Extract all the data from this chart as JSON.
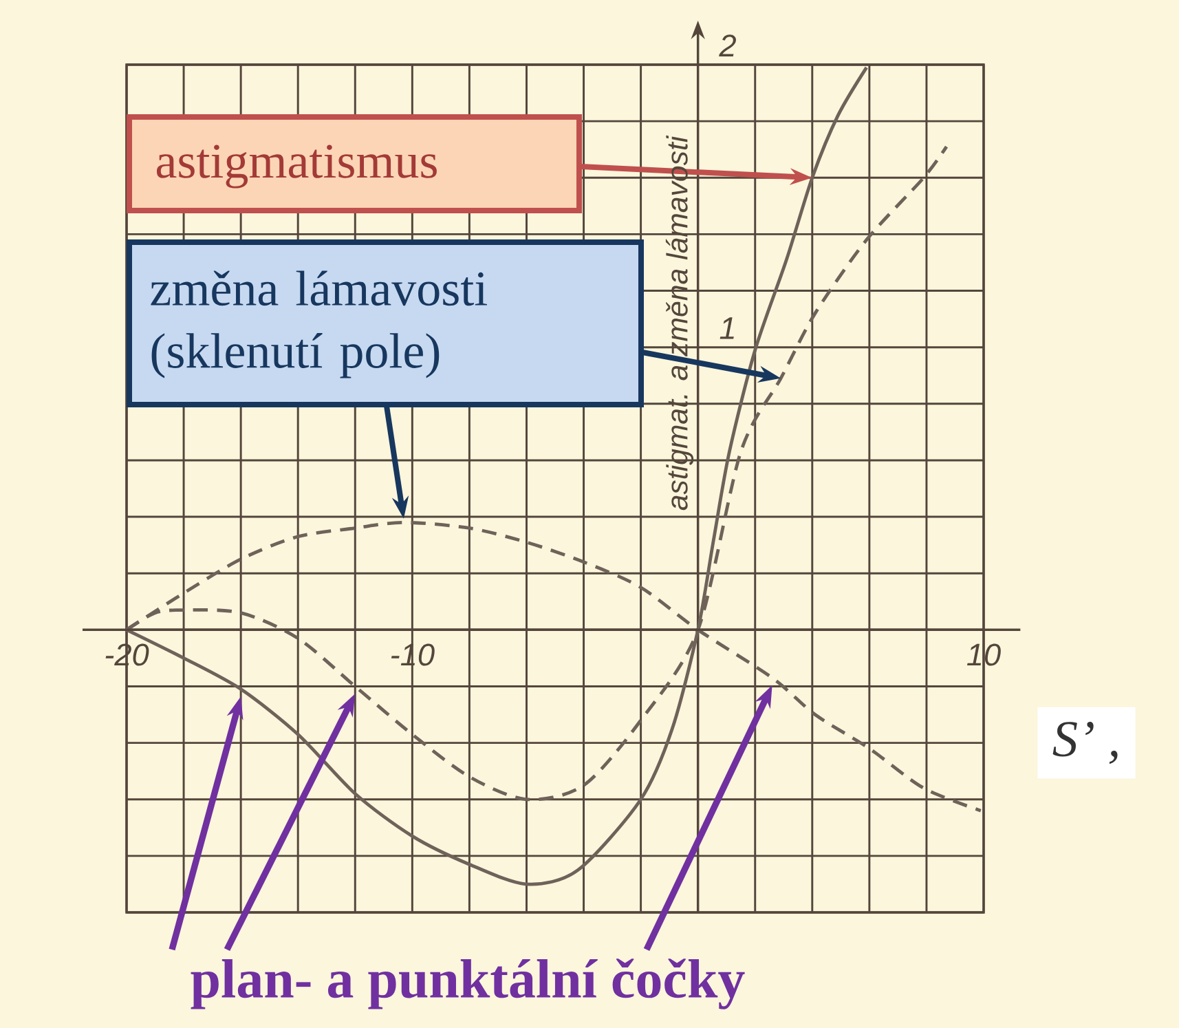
{
  "chart_data": {
    "type": "line",
    "xlabel": "S’ ,",
    "ylabel": "astigmat. a změna lámavosti",
    "annotations": [
      "astigmatismus",
      "změna lámavosti (sklenutí pole)",
      "plan- a punktální čočky"
    ],
    "xlim": [
      -20,
      10
    ],
    "ylim": [
      -1,
      2
    ],
    "xticks": [
      -20,
      {
        "value": -18,
        "label": null
      },
      {
        "value": -16,
        "label": null
      },
      {
        "value": -14,
        "label": null
      },
      {
        "value": -12,
        "label": null
      },
      -10,
      {
        "value": -8,
        "label": null
      },
      {
        "value": -6,
        "label": null
      },
      {
        "value": -4,
        "label": null
      },
      {
        "value": -2,
        "label": null
      },
      {
        "value": 0,
        "label": null
      },
      {
        "value": 2,
        "label": null
      },
      {
        "value": 4,
        "label": null
      },
      {
        "value": 6,
        "label": null
      },
      {
        "value": 8,
        "label": null
      },
      10
    ],
    "yticks": [
      {
        "value": -1,
        "label": null
      },
      {
        "value": -0.8,
        "label": null
      },
      {
        "value": -0.6,
        "label": null
      },
      {
        "value": -0.4,
        "label": null
      },
      {
        "value": -0.2,
        "label": null
      },
      {
        "value": 0,
        "label": null
      },
      {
        "value": 0.2,
        "label": null
      },
      {
        "value": 0.4,
        "label": null
      },
      {
        "value": 0.6,
        "label": null
      },
      {
        "value": 0.8,
        "label": null
      },
      1,
      {
        "value": 1.2,
        "label": null
      },
      {
        "value": 1.4,
        "label": null
      },
      {
        "value": 1.6,
        "label": null
      },
      {
        "value": 1.8,
        "label": null
      },
      2
    ],
    "grid": true,
    "marker": "none",
    "series": [
      {
        "color": "#6e6259",
        "line_style": "solid",
        "x": [
          -20,
          -18,
          -16,
          -14,
          -12,
          -10,
          -8,
          -6,
          -4.2,
          -2,
          -0.9,
          0,
          0.55,
          1.1,
          2,
          3.1,
          4,
          4.9,
          5.9
        ],
        "values": [
          0,
          -0.1,
          -0.21,
          -0.37,
          -0.58,
          -0.73,
          -0.83,
          -0.9,
          -0.85,
          -0.6,
          -0.35,
          0,
          0.32,
          0.63,
          0.99,
          1.31,
          1.6,
          1.82,
          1.99
        ]
      },
      {
        "color": "#6e6259",
        "line_style": "dashed",
        "x": [
          -20,
          -18,
          -16,
          -14,
          -12,
          -10.3,
          -8,
          -6,
          -4,
          -2,
          0,
          2.6,
          4.1,
          6,
          7.9,
          9.9
        ],
        "values": [
          0,
          0.13,
          0.25,
          0.33,
          0.36,
          0.38,
          0.36,
          0.31,
          0.24,
          0.15,
          0,
          -0.17,
          -0.3,
          -0.42,
          -0.56,
          -0.64
        ]
      },
      {
        "color": "#6e6259",
        "line_style": "dashed",
        "x": [
          -20,
          -19,
          -18,
          -16,
          -14,
          -12,
          -10,
          -8,
          -6,
          -4,
          -2,
          0,
          1.5,
          2.9,
          4.1,
          5.9,
          7.9,
          8.7
        ],
        "values": [
          0,
          0.06,
          0.07,
          0.06,
          -0.03,
          -0.2,
          -0.37,
          -0.52,
          -0.6,
          -0.55,
          -0.32,
          0,
          0.63,
          0.89,
          1.12,
          1.38,
          1.6,
          1.71
        ]
      }
    ]
  }
}
